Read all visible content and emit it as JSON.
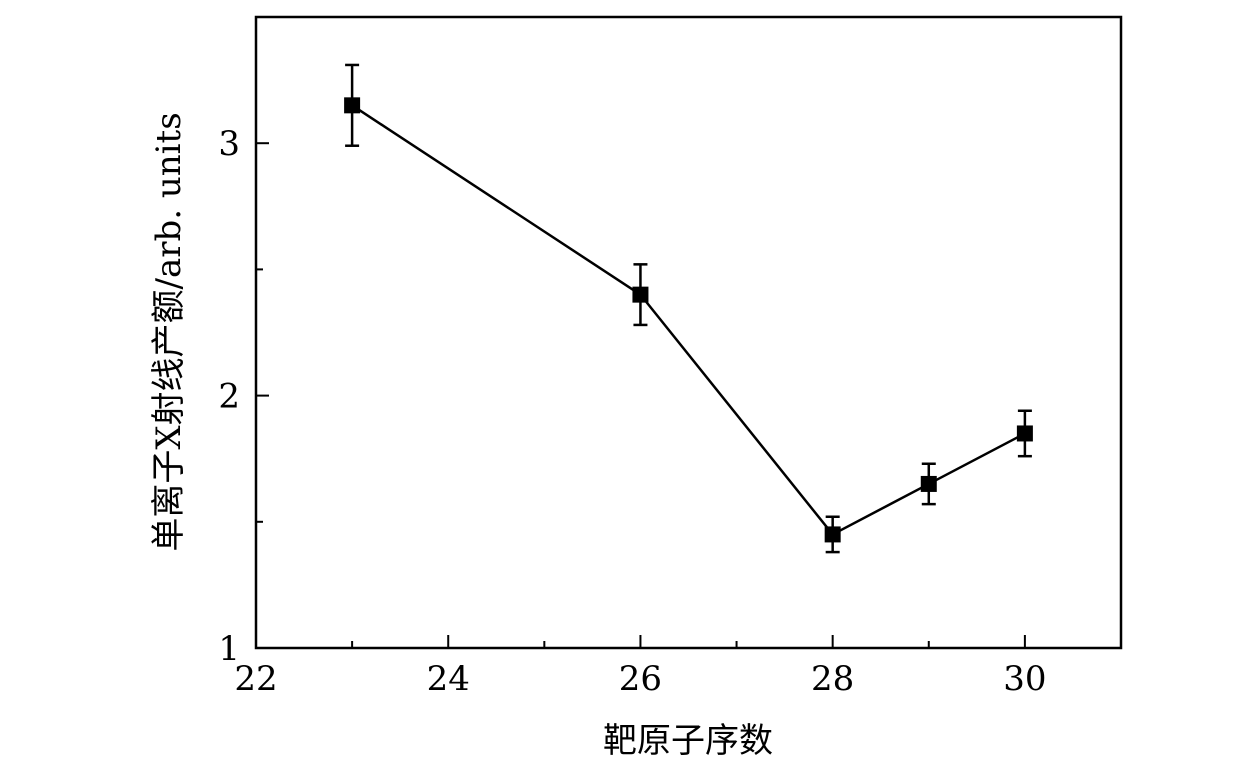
{
  "chart_data": {
    "type": "line",
    "title": "",
    "xlabel": "靶原子序数",
    "ylabel": "单离子X射线产额/arb. units",
    "xlim": [
      22,
      31
    ],
    "ylim": [
      1,
      3.5
    ],
    "x_ticks": [
      {
        "value": 22,
        "label": "22"
      },
      {
        "value": 24,
        "label": "24"
      },
      {
        "value": 26,
        "label": "26"
      },
      {
        "value": 28,
        "label": "28"
      },
      {
        "value": 30,
        "label": "30"
      }
    ],
    "x_minor_ticks": [
      23,
      25,
      27,
      29
    ],
    "y_ticks": [
      {
        "value": 1,
        "label": "1"
      },
      {
        "value": 2,
        "label": "2"
      },
      {
        "value": 3,
        "label": "3"
      }
    ],
    "y_minor_ticks": [
      1.5,
      2.5
    ],
    "grid": false,
    "series": [
      {
        "marker": "square",
        "color": "#000000",
        "points": [
          {
            "x": 23,
            "y": 3.15,
            "err_low": 0.16,
            "err_high": 0.16
          },
          {
            "x": 26,
            "y": 2.4,
            "err_low": 0.12,
            "err_high": 0.12
          },
          {
            "x": 28,
            "y": 1.45,
            "err_low": 0.07,
            "err_high": 0.07
          },
          {
            "x": 29,
            "y": 1.65,
            "err_low": 0.08,
            "err_high": 0.08
          },
          {
            "x": 30,
            "y": 1.85,
            "err_low": 0.09,
            "err_high": 0.09
          }
        ]
      }
    ]
  }
}
